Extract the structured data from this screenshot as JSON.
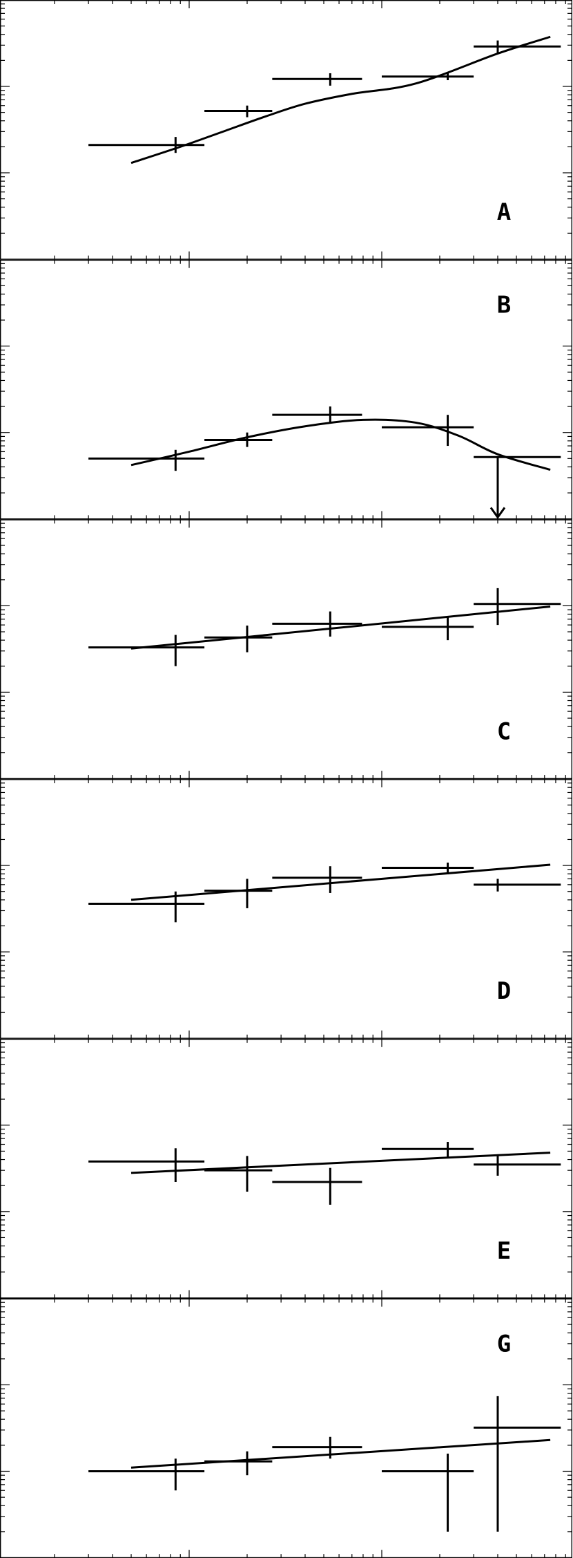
{
  "chart_data": [
    {
      "type": "scatter",
      "panel_label": "A",
      "x_scale": "log",
      "y_scale": "log",
      "xlim": [
        0.2,
        100
      ],
      "ylim": [
        0.01,
        10
      ],
      "points": [
        {
          "x": 0.85,
          "xlo": 0.3,
          "xhi": 1.2,
          "y": 0.21,
          "ylo": 0.17,
          "yhi": 0.26
        },
        {
          "x": 2.0,
          "xlo": 1.2,
          "xhi": 2.7,
          "y": 0.52,
          "ylo": 0.44,
          "yhi": 0.6
        },
        {
          "x": 5.4,
          "xlo": 2.7,
          "xhi": 7.9,
          "y": 1.22,
          "ylo": 1.02,
          "yhi": 1.42
        },
        {
          "x": 22,
          "xlo": 10,
          "xhi": 30,
          "y": 1.3,
          "ylo": 1.18,
          "yhi": 1.42
        },
        {
          "x": 40,
          "xlo": 30,
          "xhi": 85,
          "y": 2.9,
          "ylo": 2.4,
          "yhi": 3.4
        }
      ],
      "model": {
        "x": [
          0.5,
          0.9,
          1.5,
          2.5,
          4,
          7,
          15,
          40,
          75
        ],
        "y": [
          0.13,
          0.2,
          0.3,
          0.45,
          0.63,
          0.82,
          1.08,
          2.4,
          3.75
        ]
      }
    },
    {
      "type": "scatter",
      "panel_label": "B",
      "x_scale": "log",
      "y_scale": "log",
      "xlim": [
        0.2,
        100
      ],
      "ylim": [
        0.01,
        10
      ],
      "points": [
        {
          "x": 0.85,
          "xlo": 0.3,
          "xhi": 1.2,
          "y": 0.05,
          "ylo": 0.036,
          "yhi": 0.063
        },
        {
          "x": 2.0,
          "xlo": 1.2,
          "xhi": 2.7,
          "y": 0.082,
          "ylo": 0.068,
          "yhi": 0.1
        },
        {
          "x": 5.4,
          "xlo": 2.7,
          "xhi": 7.9,
          "y": 0.16,
          "ylo": 0.13,
          "yhi": 0.2
        },
        {
          "x": 22,
          "xlo": 10,
          "xhi": 30,
          "y": 0.115,
          "ylo": 0.07,
          "yhi": 0.16
        },
        {
          "x": 40,
          "xlo": 30,
          "xhi": 85,
          "y": 0.052,
          "upper_limit": true,
          "arrow_to": 0.01
        }
      ],
      "model": {
        "x": [
          0.5,
          1,
          2,
          4,
          8,
          15,
          25,
          40,
          75
        ],
        "y": [
          0.042,
          0.06,
          0.088,
          0.118,
          0.14,
          0.13,
          0.092,
          0.056,
          0.037
        ]
      }
    },
    {
      "type": "scatter",
      "panel_label": "C",
      "x_scale": "log",
      "y_scale": "log",
      "xlim": [
        0.2,
        100
      ],
      "ylim": [
        0.01,
        10
      ],
      "points": [
        {
          "x": 0.85,
          "xlo": 0.3,
          "xhi": 1.2,
          "y": 0.33,
          "ylo": 0.2,
          "yhi": 0.46
        },
        {
          "x": 2.0,
          "xlo": 1.2,
          "xhi": 2.7,
          "y": 0.43,
          "ylo": 0.29,
          "yhi": 0.59
        },
        {
          "x": 5.4,
          "xlo": 2.7,
          "xhi": 7.9,
          "y": 0.62,
          "ylo": 0.44,
          "yhi": 0.86
        },
        {
          "x": 22,
          "xlo": 10,
          "xhi": 30,
          "y": 0.57,
          "ylo": 0.4,
          "yhi": 0.75
        },
        {
          "x": 40,
          "xlo": 30,
          "xhi": 85,
          "y": 1.05,
          "ylo": 0.6,
          "yhi": 1.6
        }
      ],
      "model": {
        "x": [
          0.5,
          75
        ],
        "y": [
          0.32,
          0.98
        ]
      }
    },
    {
      "type": "scatter",
      "panel_label": "D",
      "x_scale": "log",
      "y_scale": "log",
      "xlim": [
        0.2,
        100
      ],
      "ylim": [
        0.01,
        10
      ],
      "points": [
        {
          "x": 0.85,
          "xlo": 0.3,
          "xhi": 1.2,
          "y": 0.36,
          "ylo": 0.22,
          "yhi": 0.5
        },
        {
          "x": 2.0,
          "xlo": 1.2,
          "xhi": 2.7,
          "y": 0.51,
          "ylo": 0.32,
          "yhi": 0.7
        },
        {
          "x": 5.4,
          "xlo": 2.7,
          "xhi": 7.9,
          "y": 0.72,
          "ylo": 0.48,
          "yhi": 0.98
        },
        {
          "x": 22,
          "xlo": 10,
          "xhi": 30,
          "y": 0.94,
          "ylo": 0.79,
          "yhi": 1.08
        },
        {
          "x": 40,
          "xlo": 30,
          "xhi": 85,
          "y": 0.6,
          "ylo": 0.5,
          "yhi": 0.7
        }
      ],
      "model": {
        "x": [
          0.5,
          75
        ],
        "y": [
          0.4,
          1.02
        ]
      }
    },
    {
      "type": "scatter",
      "panel_label": "E",
      "x_scale": "log",
      "y_scale": "log",
      "xlim": [
        0.2,
        100
      ],
      "ylim": [
        0.01,
        10
      ],
      "points": [
        {
          "x": 0.85,
          "xlo": 0.3,
          "xhi": 1.2,
          "y": 0.38,
          "ylo": 0.22,
          "yhi": 0.54
        },
        {
          "x": 2.0,
          "xlo": 1.2,
          "xhi": 2.7,
          "y": 0.3,
          "ylo": 0.17,
          "yhi": 0.44
        },
        {
          "x": 5.4,
          "xlo": 2.7,
          "xhi": 7.9,
          "y": 0.22,
          "ylo": 0.12,
          "yhi": 0.32
        },
        {
          "x": 22,
          "xlo": 10,
          "xhi": 30,
          "y": 0.53,
          "ylo": 0.42,
          "yhi": 0.64
        },
        {
          "x": 40,
          "xlo": 30,
          "xhi": 85,
          "y": 0.35,
          "ylo": 0.26,
          "yhi": 0.46
        }
      ],
      "model": {
        "x": [
          0.5,
          75
        ],
        "y": [
          0.28,
          0.48
        ]
      }
    },
    {
      "type": "scatter",
      "panel_label": "G",
      "x_scale": "log",
      "y_scale": "log",
      "xlim": [
        0.2,
        100
      ],
      "ylim": [
        0.01,
        10
      ],
      "points": [
        {
          "x": 0.85,
          "xlo": 0.3,
          "xhi": 1.2,
          "y": 0.1,
          "ylo": 0.06,
          "yhi": 0.14
        },
        {
          "x": 2.0,
          "xlo": 1.2,
          "xhi": 2.7,
          "y": 0.13,
          "ylo": 0.09,
          "yhi": 0.17
        },
        {
          "x": 5.4,
          "xlo": 2.7,
          "xhi": 7.9,
          "y": 0.19,
          "ylo": 0.14,
          "yhi": 0.25
        },
        {
          "x": 22,
          "xlo": 10,
          "xhi": 30,
          "y": 0.1,
          "ylo": 0.02,
          "yhi": 0.16
        },
        {
          "x": 40,
          "xlo": 30,
          "xhi": 85,
          "y": 0.32,
          "ylo": 0.02,
          "yhi": 0.74
        }
      ],
      "model": {
        "x": [
          0.5,
          75
        ],
        "y": [
          0.11,
          0.23
        ]
      }
    }
  ]
}
